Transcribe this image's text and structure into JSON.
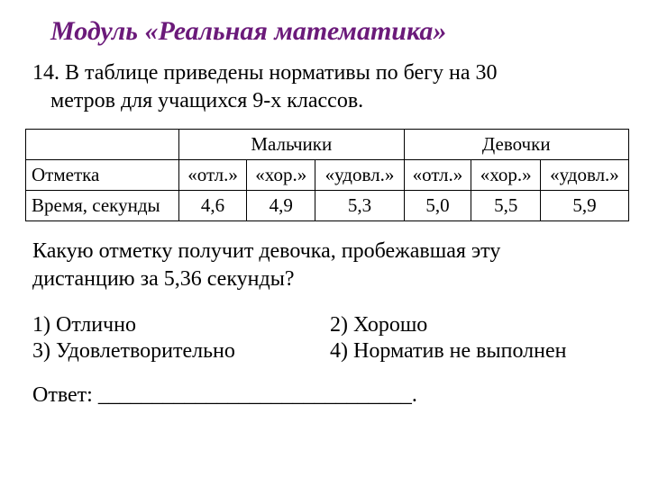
{
  "title": "Модуль «Реальная математика»",
  "title_color": "#6b1a7a",
  "problem_number": "14.",
  "problem_text_line1": "В таблице приведены нормативы по бегу на 30",
  "problem_text_line2": "метров для учащихся 9-х классов.",
  "table": {
    "group_headers": [
      "Мальчики",
      "Девочки"
    ],
    "sub_headers": [
      "«отл.»",
      "«хор.»",
      "«удовл.»",
      "«отл.»",
      "«хор.»",
      "«удовл.»"
    ],
    "row1_label": "Отметка",
    "row2_label": "Время, секунды",
    "row2_values": [
      "4,6",
      "4,9",
      "5,3",
      "5,0",
      "5,5",
      "5,9"
    ],
    "border_color": "#000000",
    "header_fontsize": 21,
    "cell_fontsize": 21
  },
  "question_line1": "Какую отметку получит девочка, пробежавшая эту",
  "question_line2": "дистанцию за 5,36 секунды?",
  "options": {
    "o1": "1)  Отлично",
    "o2": "2) Хорошо",
    "o3": "3)  Удовлетворительно",
    "o4": "4) Норматив не выполнен"
  },
  "answer_label": "Ответ:",
  "answer_blank": "_____________________________.",
  "background_color": "#ffffff",
  "text_color": "#000000",
  "font_family": "Times New Roman"
}
